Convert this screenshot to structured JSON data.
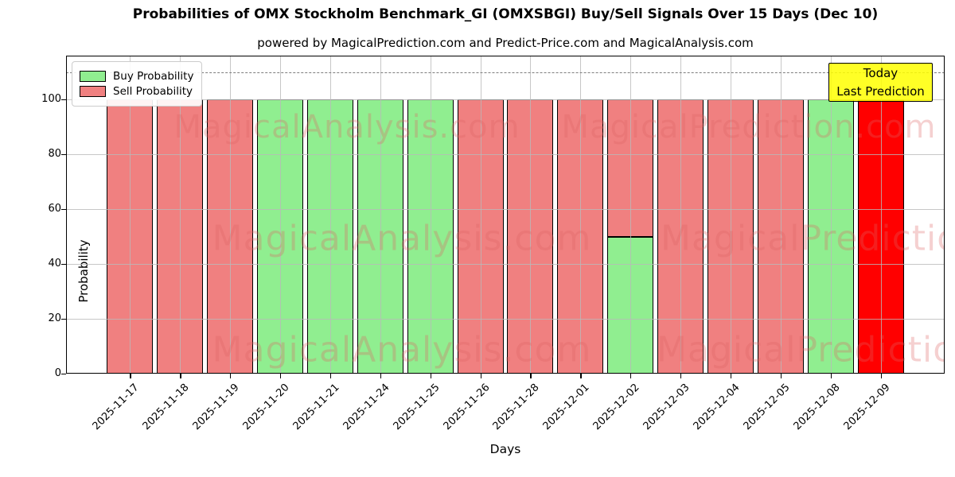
{
  "chart_data": {
    "type": "bar",
    "stacked": true,
    "title": "Probabilities of OMX Stockholm Benchmark_GI (OMXSBGI) Buy/Sell Signals Over 15 Days (Dec 10)",
    "subtitle": "powered by MagicalPrediction.com and Predict-Price.com and MagicalAnalysis.com",
    "xlabel": "Days",
    "ylabel": "Probability",
    "ylim": [
      0,
      116
    ],
    "yticks": [
      0,
      20,
      40,
      60,
      80,
      100
    ],
    "grid": true,
    "threshold_line": {
      "value": 110,
      "style": "dashed",
      "color": "#7d7d7d"
    },
    "categories": [
      "2025-11-17",
      "2025-11-18",
      "2025-11-19",
      "2025-11-20",
      "2025-11-21",
      "2025-11-24",
      "2025-11-25",
      "2025-11-26",
      "2025-11-28",
      "2025-12-01",
      "2025-12-02",
      "2025-12-03",
      "2025-12-04",
      "2025-12-05",
      "2025-12-08",
      "2025-12-09"
    ],
    "series": [
      {
        "name": "Buy Probability",
        "color": "#90ee90",
        "in_legend": true,
        "values": [
          0,
          0,
          0,
          100,
          100,
          100,
          100,
          0,
          0,
          0,
          50,
          0,
          0,
          0,
          100,
          0
        ]
      },
      {
        "name": "Sell Probability",
        "color": "#f08080",
        "in_legend": true,
        "values": [
          100,
          100,
          100,
          0,
          0,
          0,
          0,
          100,
          100,
          100,
          50,
          100,
          100,
          100,
          0,
          0
        ]
      },
      {
        "name": "Today Sell Highlight",
        "color": "#ff0000",
        "in_legend": false,
        "values": [
          0,
          0,
          0,
          0,
          0,
          0,
          0,
          0,
          0,
          0,
          0,
          0,
          0,
          0,
          0,
          100
        ]
      }
    ],
    "legend": {
      "position": "upper left",
      "items": [
        {
          "label": "Buy Probability",
          "color": "#90ee90"
        },
        {
          "label": "Sell Probability",
          "color": "#f08080"
        }
      ]
    },
    "annotation": {
      "lines": [
        "Today",
        "Last Prediction"
      ],
      "bg_color": "#ffff00",
      "border_color": "#000000"
    },
    "watermarks": {
      "left_text": "MagicalAnalysis.com",
      "right_text": "MagicalPrediction.com"
    }
  }
}
